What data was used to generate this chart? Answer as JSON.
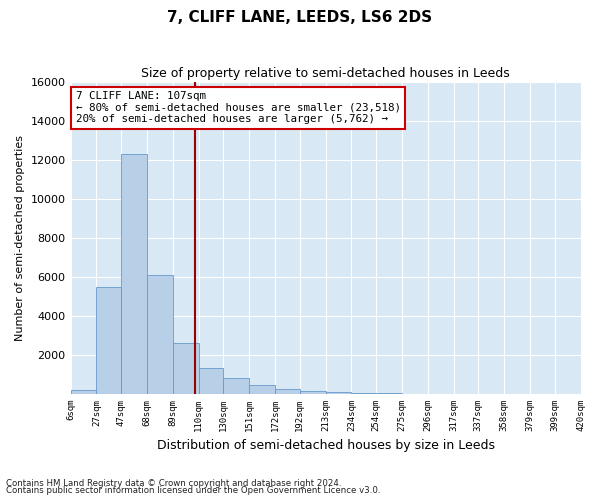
{
  "title": "7, CLIFF LANE, LEEDS, LS6 2DS",
  "subtitle": "Size of property relative to semi-detached houses in Leeds",
  "xlabel": "Distribution of semi-detached houses by size in Leeds",
  "ylabel": "Number of semi-detached properties",
  "footer1": "Contains HM Land Registry data © Crown copyright and database right 2024.",
  "footer2": "Contains public sector information licensed under the Open Government Licence v3.0.",
  "property_size": 107,
  "annotation_text_line1": "7 CLIFF LANE: 107sqm",
  "annotation_text_line2": "← 80% of semi-detached houses are smaller (23,518)",
  "annotation_text_line3": "20% of semi-detached houses are larger (5,762) →",
  "bar_color": "#b8cfe8",
  "bar_edge_color": "#6699cc",
  "vline_color": "#990000",
  "annotation_box_color": "#ffffff",
  "annotation_box_edge": "#cc0000",
  "bg_color": "#d9e8f5",
  "ylim": [
    0,
    16000
  ],
  "yticks": [
    0,
    2000,
    4000,
    6000,
    8000,
    10000,
    12000,
    14000,
    16000
  ],
  "bin_edges": [
    6,
    27,
    47,
    68,
    89,
    110,
    130,
    151,
    172,
    192,
    213,
    234,
    254,
    275,
    296,
    317,
    337,
    358,
    379,
    399,
    420
  ],
  "bin_labels": [
    "6sqm",
    "27sqm",
    "47sqm",
    "68sqm",
    "89sqm",
    "110sqm",
    "130sqm",
    "151sqm",
    "172sqm",
    "192sqm",
    "213sqm",
    "234sqm",
    "254sqm",
    "275sqm",
    "296sqm",
    "317sqm",
    "337sqm",
    "358sqm",
    "379sqm",
    "399sqm",
    "420sqm"
  ],
  "counts": [
    200,
    5500,
    12300,
    6100,
    2600,
    1350,
    800,
    480,
    270,
    180,
    100,
    60,
    30,
    10,
    5,
    0,
    0,
    0,
    0,
    0
  ]
}
